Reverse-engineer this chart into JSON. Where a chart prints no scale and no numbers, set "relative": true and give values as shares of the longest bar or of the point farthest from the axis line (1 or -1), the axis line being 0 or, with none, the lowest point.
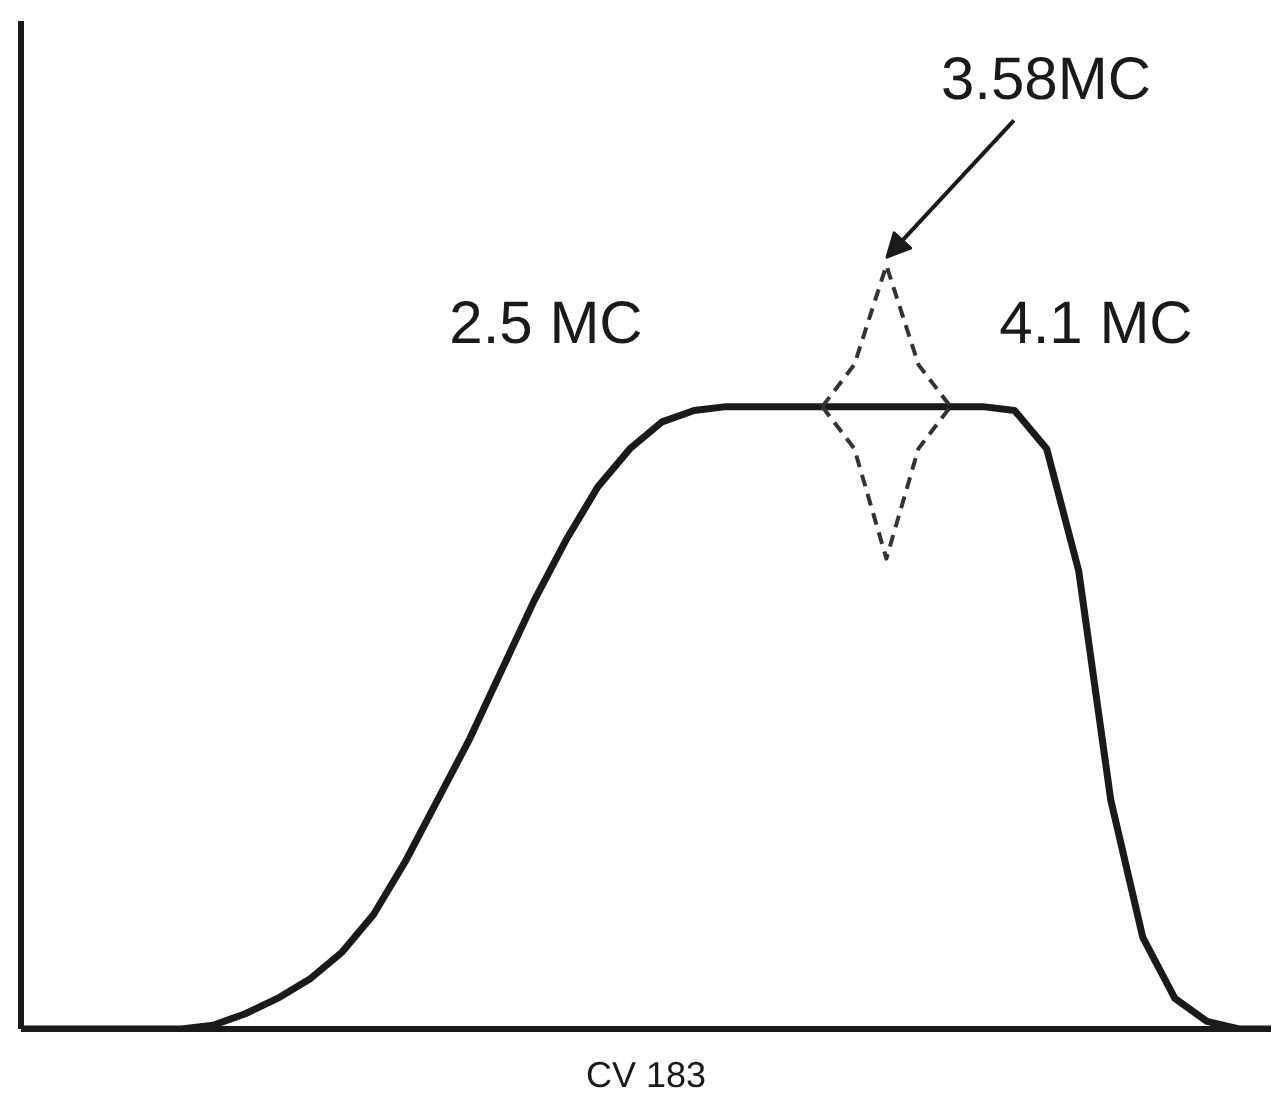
{
  "chart_data": {
    "type": "line",
    "relative": true,
    "categories": [
      null,
      null,
      null,
      null,
      null,
      null,
      null,
      null,
      null,
      null,
      null,
      null,
      null,
      null,
      null,
      null,
      null,
      null,
      null,
      null,
      null,
      null,
      null,
      null,
      null,
      null,
      null,
      null,
      null,
      null,
      null,
      null,
      null,
      null,
      null,
      null,
      null,
      null,
      null,
      null
    ],
    "series": [
      {
        "color": "#1a1a1a",
        "line_style": "solid",
        "values": [
          0,
          0,
          0,
          0,
          0,
          0,
          0.005,
          0.02,
          0.04,
          0.065,
          0.1,
          0.15,
          0.22,
          0.3,
          0.38,
          0.47,
          0.56,
          0.64,
          0.71,
          0.76,
          0.795,
          0.81,
          0.815,
          0.815,
          0.815,
          0.815,
          0.815,
          0.815,
          0.815,
          0.815,
          0.815,
          0.81,
          0.76,
          0.6,
          0.3,
          0.12,
          0.04,
          0.01,
          0,
          0
        ]
      },
      {
        "color": "#333333",
        "line_style": "dashed",
        "values": [
          null,
          null,
          null,
          null,
          null,
          null,
          null,
          null,
          null,
          null,
          null,
          null,
          null,
          null,
          null,
          null,
          null,
          null,
          null,
          null,
          null,
          null,
          null,
          null,
          null,
          0.815,
          0.87,
          1.0,
          0.87,
          0.815,
          null,
          null,
          null,
          null,
          null,
          null,
          null,
          null,
          null,
          null
        ]
      },
      {
        "color": "#333333",
        "line_style": "dashed",
        "values": [
          null,
          null,
          null,
          null,
          null,
          null,
          null,
          null,
          null,
          null,
          null,
          null,
          null,
          null,
          null,
          null,
          null,
          null,
          null,
          null,
          null,
          null,
          null,
          null,
          null,
          0.815,
          0.76,
          0.616,
          0.76,
          0.815,
          null,
          null,
          null,
          null,
          null,
          null,
          null,
          null,
          null,
          null
        ]
      }
    ],
    "annotations": [
      "2.5 MC",
      "3.58MC",
      "4.1 MC",
      "CV 183"
    ],
    "grid": false,
    "marker": "none"
  }
}
